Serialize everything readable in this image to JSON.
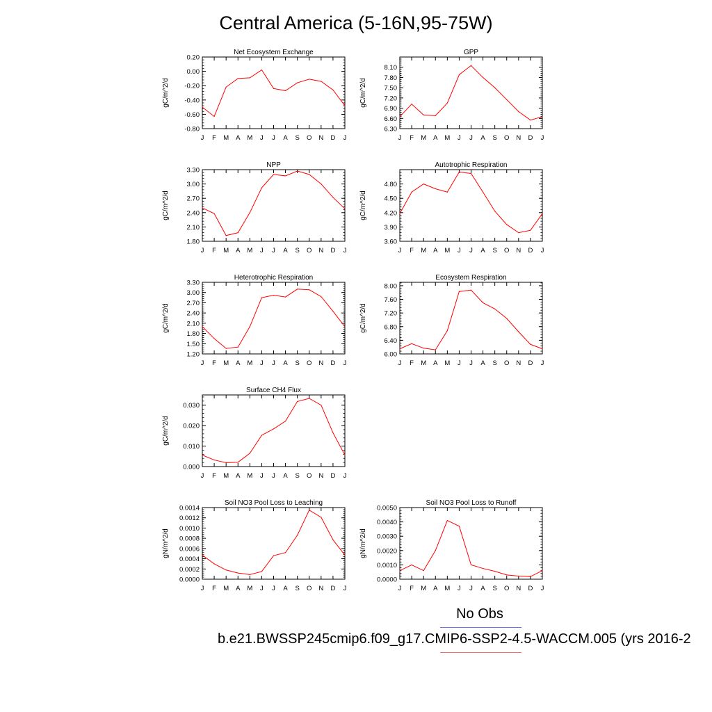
{
  "page_title": "Central America (5-16N,95-75W)",
  "legend": {
    "obs_label": "No Obs",
    "obs_color": "#6f6ff0",
    "case_label": "b.e21.BWSSP245cmip6.f09_g17.CMIP6-SSP2-4.5-WACCM.005 (yrs 2016-2",
    "case_color": "#f07070"
  },
  "line_color": "#ff0000",
  "chart_data": [
    {
      "type": "line",
      "title": "Net Ecosystem Exchange",
      "ylabel": "gC/m^2/d",
      "categories": [
        "J",
        "F",
        "M",
        "A",
        "M",
        "J",
        "J",
        "A",
        "S",
        "O",
        "N",
        "D",
        "J"
      ],
      "values": [
        -0.5,
        -0.63,
        -0.22,
        -0.1,
        -0.09,
        0.02,
        -0.24,
        -0.27,
        -0.16,
        -0.11,
        -0.14,
        -0.26,
        -0.48
      ],
      "ylim": [
        -0.8,
        0.2
      ],
      "yticks": [
        "-0.80",
        "-0.60",
        "-0.40",
        "-0.20",
        "0.00",
        "0.20"
      ]
    },
    {
      "type": "line",
      "title": "GPP",
      "ylabel": "gC/m^2/d",
      "categories": [
        "J",
        "F",
        "M",
        "A",
        "M",
        "J",
        "J",
        "A",
        "S",
        "O",
        "N",
        "D",
        "J"
      ],
      "values": [
        6.65,
        7.02,
        6.7,
        6.68,
        7.05,
        7.88,
        8.15,
        7.8,
        7.5,
        7.15,
        6.8,
        6.55,
        6.65
      ],
      "ylim": [
        6.3,
        8.4
      ],
      "yticks": [
        "6.30",
        "6.60",
        "6.90",
        "7.20",
        "7.50",
        "7.80",
        "8.10"
      ]
    },
    {
      "type": "line",
      "title": "NPP",
      "ylabel": "gC/m^2/d",
      "categories": [
        "J",
        "F",
        "M",
        "A",
        "M",
        "J",
        "J",
        "A",
        "S",
        "O",
        "N",
        "D",
        "J"
      ],
      "values": [
        2.5,
        2.38,
        1.92,
        1.98,
        2.4,
        2.92,
        3.2,
        3.17,
        3.27,
        3.2,
        3.0,
        2.72,
        2.48
      ],
      "ylim": [
        1.8,
        3.3
      ],
      "yticks": [
        "1.80",
        "2.10",
        "2.40",
        "2.70",
        "3.00",
        "3.30"
      ]
    },
    {
      "type": "line",
      "title": "Autotrophic Respiration",
      "ylabel": "gC/m^2/d",
      "categories": [
        "J",
        "F",
        "M",
        "A",
        "M",
        "J",
        "J",
        "A",
        "S",
        "O",
        "N",
        "D",
        "J"
      ],
      "values": [
        4.18,
        4.63,
        4.8,
        4.7,
        4.63,
        5.05,
        5.02,
        4.63,
        4.23,
        3.95,
        3.78,
        3.83,
        4.18
      ],
      "ylim": [
        3.6,
        5.1
      ],
      "yticks": [
        "3.60",
        "3.90",
        "4.20",
        "4.50",
        "4.80"
      ]
    },
    {
      "type": "line",
      "title": "Heterotrophic Respiration",
      "ylabel": "gC/m^2/d",
      "categories": [
        "J",
        "F",
        "M",
        "A",
        "M",
        "J",
        "J",
        "A",
        "S",
        "O",
        "N",
        "D",
        "J"
      ],
      "values": [
        2.0,
        1.65,
        1.36,
        1.4,
        2.0,
        2.85,
        2.92,
        2.87,
        3.1,
        3.08,
        2.88,
        2.45,
        2.0
      ],
      "ylim": [
        1.2,
        3.3
      ],
      "yticks": [
        "1.20",
        "1.50",
        "1.80",
        "2.10",
        "2.40",
        "2.70",
        "3.00",
        "3.30"
      ]
    },
    {
      "type": "line",
      "title": "Ecosystem Respiration",
      "ylabel": "gC/m^2/d",
      "categories": [
        "J",
        "F",
        "M",
        "A",
        "M",
        "J",
        "J",
        "A",
        "S",
        "O",
        "N",
        "D",
        "J"
      ],
      "values": [
        6.15,
        6.3,
        6.17,
        6.12,
        6.68,
        7.83,
        7.87,
        7.5,
        7.32,
        7.04,
        6.65,
        6.28,
        6.15
      ],
      "ylim": [
        6.0,
        8.1
      ],
      "yticks": [
        "6.00",
        "6.40",
        "6.80",
        "7.20",
        "7.60",
        "8.00"
      ]
    },
    {
      "type": "line",
      "title": "Surface CH4 Flux",
      "ylabel": "gC/m^2/d",
      "categories": [
        "J",
        "F",
        "M",
        "A",
        "M",
        "J",
        "J",
        "A",
        "S",
        "O",
        "N",
        "D",
        "J"
      ],
      "values": [
        0.0056,
        0.0032,
        0.0019,
        0.0021,
        0.0065,
        0.0153,
        0.0184,
        0.0222,
        0.0318,
        0.0333,
        0.03,
        0.0165,
        0.0056
      ],
      "ylim": [
        0.0,
        0.035
      ],
      "yticks": [
        "0.000",
        "0.010",
        "0.020",
        "0.030"
      ]
    },
    {
      "type": "line",
      "title": "Soil NO3 Pool Loss to Leaching",
      "ylabel": "gN/m^2/d",
      "categories": [
        "J",
        "F",
        "M",
        "A",
        "M",
        "J",
        "J",
        "A",
        "S",
        "O",
        "N",
        "D",
        "J"
      ],
      "values": [
        0.00047,
        0.0003,
        0.00018,
        0.00012,
        9e-05,
        0.00015,
        0.00046,
        0.00052,
        0.00086,
        0.00135,
        0.00121,
        0.00077,
        0.00047
      ],
      "ylim": [
        0.0,
        0.0014
      ],
      "yticks": [
        "0.0000",
        "0.0002",
        "0.0004",
        "0.0006",
        "0.0008",
        "0.0010",
        "0.0012",
        "0.0014"
      ]
    },
    {
      "type": "line",
      "title": "Soil NO3 Pool Loss to Runoff",
      "ylabel": "gN/m^2/d",
      "categories": [
        "J",
        "F",
        "M",
        "A",
        "M",
        "J",
        "J",
        "A",
        "S",
        "O",
        "N",
        "D",
        "J"
      ],
      "values": [
        0.0006,
        0.001,
        0.0006,
        0.002,
        0.0041,
        0.0037,
        0.001,
        0.00075,
        0.00055,
        0.0003,
        0.00022,
        0.00018,
        0.0006
      ],
      "ylim": [
        0.0,
        0.005
      ],
      "yticks": [
        "0.0000",
        "0.0010",
        "0.0020",
        "0.0030",
        "0.0040",
        "0.0050"
      ]
    }
  ]
}
